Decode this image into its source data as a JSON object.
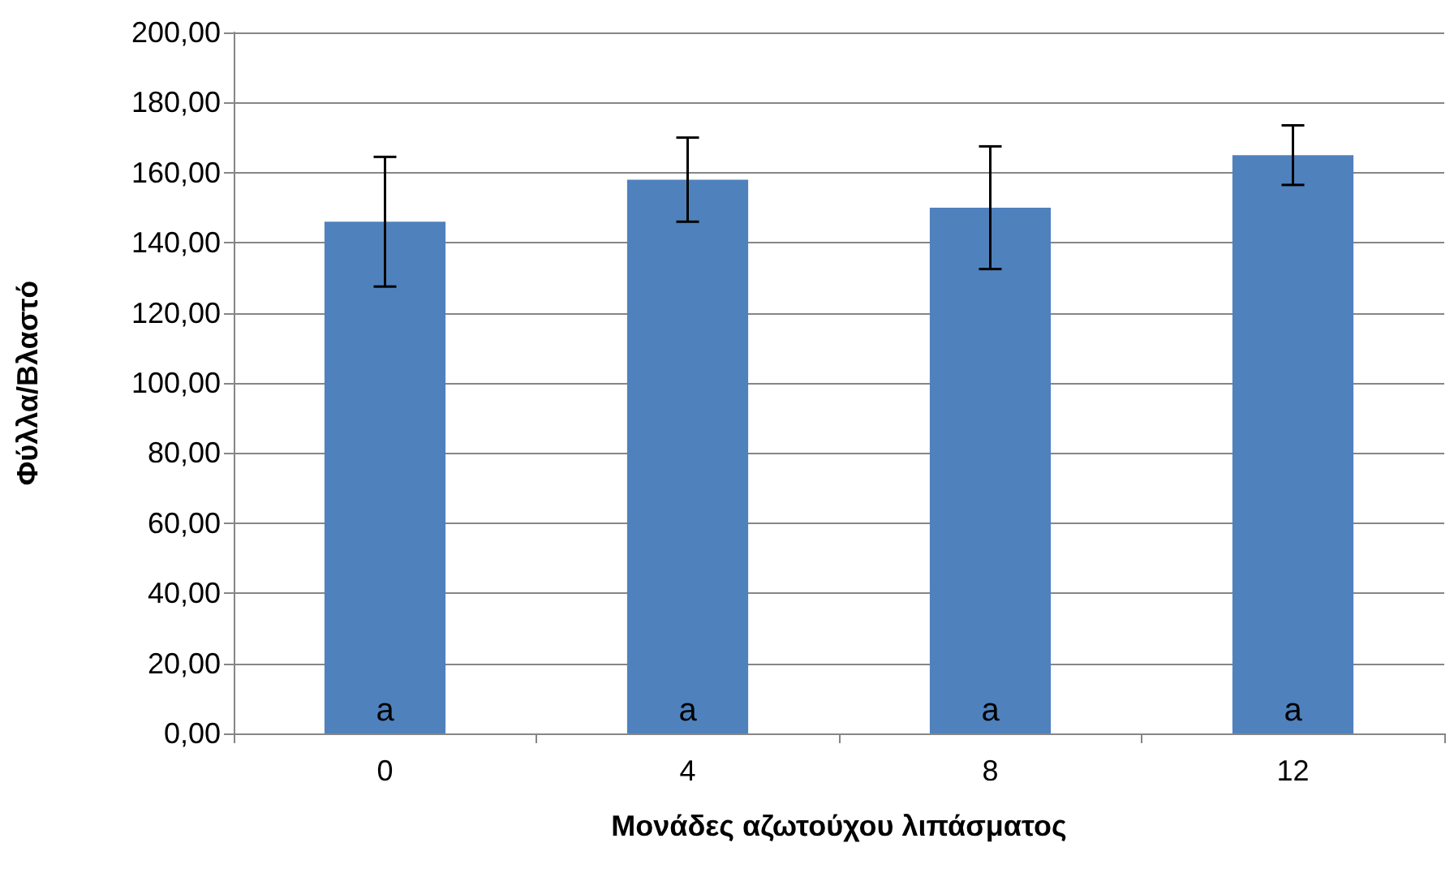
{
  "chart_data": {
    "type": "bar",
    "xlabel": "Μονάδες αζωτούχου λιπάσματος",
    "ylabel": "Φύλλα/Βλαστό",
    "categories": [
      "0",
      "4",
      "8",
      "12"
    ],
    "values": [
      146,
      158,
      150,
      165
    ],
    "errors": [
      18.5,
      12,
      17.5,
      8.5
    ],
    "color": "#4f81bd",
    "ylim": [
      0,
      200
    ],
    "yticks": [
      {
        "value": 0,
        "label": "0,00"
      },
      {
        "value": 20,
        "label": "20,00"
      },
      {
        "value": 40,
        "label": "40,00"
      },
      {
        "value": 60,
        "label": "60,00"
      },
      {
        "value": 80,
        "label": "80,00"
      },
      {
        "value": 100,
        "label": "100,00"
      },
      {
        "value": 120,
        "label": "120,00"
      },
      {
        "value": 140,
        "label": "140,00"
      },
      {
        "value": 160,
        "label": "160,00"
      },
      {
        "value": 180,
        "label": "180,00"
      },
      {
        "value": 200,
        "label": "200,00"
      }
    ],
    "grid": "y",
    "annotations": [
      "a",
      "a",
      "a",
      "a"
    ]
  }
}
